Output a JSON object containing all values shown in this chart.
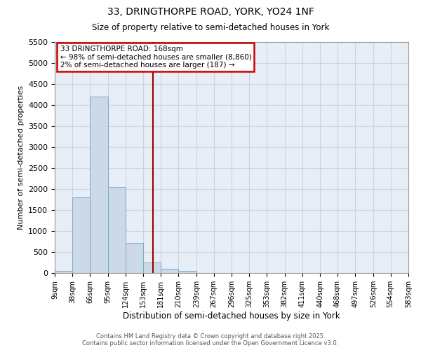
{
  "title_line1": "33, DRINGTHORPE ROAD, YORK, YO24 1NF",
  "title_line2": "Size of property relative to semi-detached houses in York",
  "xlabel": "Distribution of semi-detached houses by size in York",
  "ylabel": "Number of semi-detached properties",
  "bin_edges": [
    9,
    38,
    66,
    95,
    124,
    153,
    181,
    210,
    239,
    267,
    296,
    325,
    353,
    382,
    411,
    440,
    468,
    497,
    526,
    554,
    583
  ],
  "bar_heights": [
    50,
    1800,
    4200,
    2050,
    720,
    250,
    100,
    50,
    0,
    0,
    0,
    0,
    0,
    0,
    0,
    0,
    0,
    0,
    0,
    0
  ],
  "bar_color": "#ccd9e8",
  "bar_edge_color": "#7aaac8",
  "vline_x": 168,
  "vline_color": "#990000",
  "ylim": [
    0,
    5500
  ],
  "yticks": [
    0,
    500,
    1000,
    1500,
    2000,
    2500,
    3000,
    3500,
    4000,
    4500,
    5000,
    5500
  ],
  "annotation_title": "33 DRINGTHORPE ROAD: 168sqm",
  "annotation_line1": "← 98% of semi-detached houses are smaller (8,860)",
  "annotation_line2": "2% of semi-detached houses are larger (187) →",
  "annotation_box_color": "#cc0000",
  "grid_color": "#c8d4e4",
  "background_color": "#e8eef6",
  "footer_line1": "Contains HM Land Registry data © Crown copyright and database right 2025.",
  "footer_line2": "Contains public sector information licensed under the Open Government Licence v3.0."
}
